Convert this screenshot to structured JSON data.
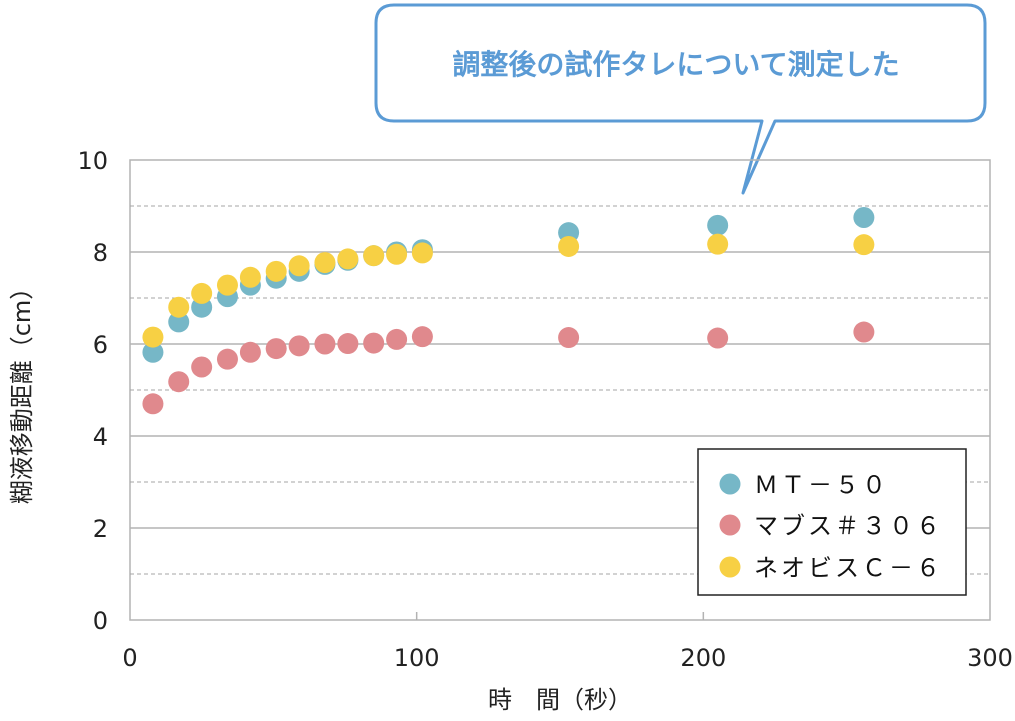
{
  "chart_data": {
    "type": "scatter",
    "title": "",
    "xlabel": "時　間（秒）",
    "ylabel": "糊液移動距離（cm）",
    "xlim": [
      0,
      300
    ],
    "ylim": [
      0,
      10
    ],
    "xticks": [
      "0",
      "100",
      "200",
      "300"
    ],
    "yticks": [
      "0",
      "2",
      "4",
      "6",
      "8",
      "10"
    ],
    "grid": "horizontal (solid at even values, dashed at odd values)",
    "legend_position": "bottom-right",
    "annotation": "調整後の試作タレについて測定した",
    "series": [
      {
        "name": "ＭＴ－５０",
        "color": "#76b7c7",
        "x": [
          8,
          17,
          25,
          34,
          42,
          51,
          59,
          68,
          76,
          85,
          93,
          102,
          153,
          205,
          256
        ],
        "y": [
          5.82,
          6.48,
          6.8,
          7.03,
          7.28,
          7.43,
          7.58,
          7.73,
          7.82,
          7.92,
          8.0,
          8.05,
          8.42,
          8.58,
          8.75
        ]
      },
      {
        "name": "マブス＃３０６",
        "color": "#e0898d",
        "x": [
          8,
          17,
          25,
          34,
          42,
          51,
          59,
          68,
          76,
          85,
          93,
          102,
          153,
          205,
          256
        ],
        "y": [
          4.7,
          5.18,
          5.5,
          5.67,
          5.82,
          5.9,
          5.96,
          6.0,
          6.01,
          6.02,
          6.1,
          6.16,
          6.14,
          6.13,
          6.26
        ]
      },
      {
        "name": "ネオビスＣ－６",
        "color": "#f7d044",
        "x": [
          8,
          17,
          25,
          34,
          42,
          51,
          59,
          68,
          76,
          85,
          93,
          102,
          153,
          205,
          256
        ],
        "y": [
          6.15,
          6.8,
          7.1,
          7.28,
          7.45,
          7.58,
          7.7,
          7.77,
          7.85,
          7.92,
          7.95,
          7.98,
          8.12,
          8.17,
          8.16
        ]
      }
    ]
  }
}
